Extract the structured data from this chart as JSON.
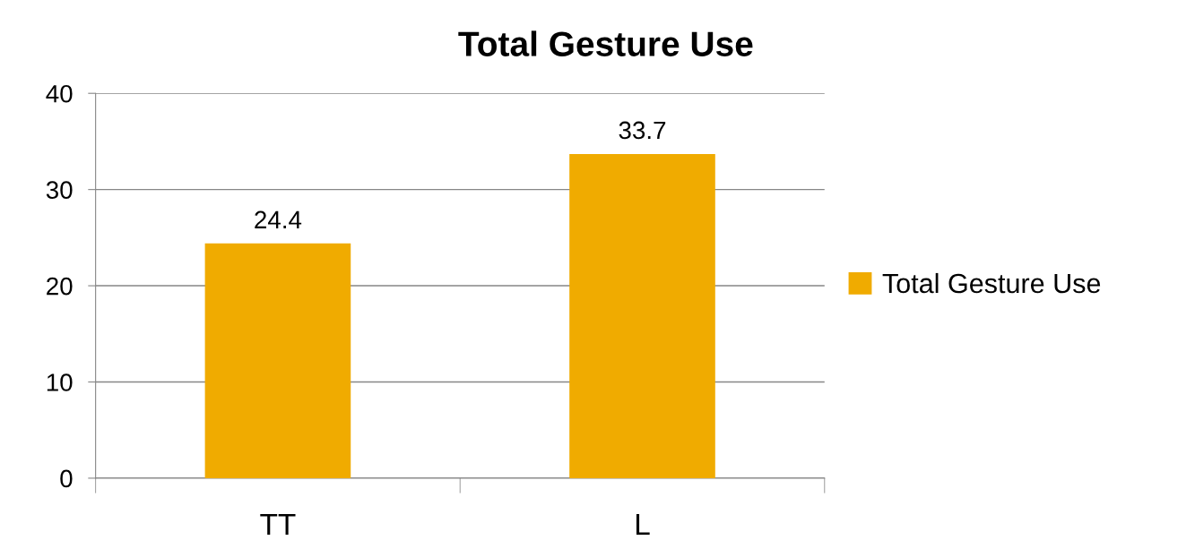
{
  "chart_data": {
    "type": "bar",
    "title": "Total Gesture Use",
    "categories": [
      "TT",
      "L"
    ],
    "series": [
      {
        "name": "Total Gesture Use",
        "color": "#f0ab00",
        "values": [
          24.4,
          33.7
        ]
      }
    ],
    "ylim": [
      0,
      40
    ],
    "yticks": [
      0,
      10,
      20,
      30,
      40
    ],
    "grid": "y",
    "legend": "right",
    "data_labels": true
  }
}
